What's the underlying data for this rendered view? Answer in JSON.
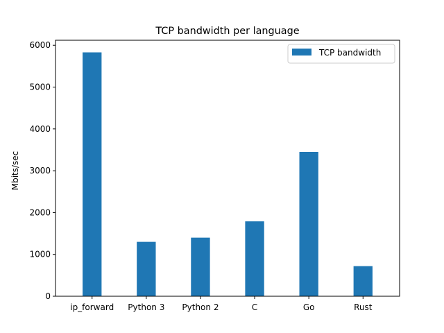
{
  "chart_data": {
    "type": "bar",
    "title": "TCP bandwidth per language",
    "xlabel": "",
    "ylabel": "Mbits/sec",
    "categories": [
      "ip_forward",
      "Python 3",
      "Python 2",
      "C",
      "Go",
      "Rust"
    ],
    "series": [
      {
        "name": "TCP bandwidth",
        "values": [
          5830,
          1300,
          1400,
          1790,
          3450,
          720
        ]
      }
    ],
    "ylim": [
      0,
      6120
    ],
    "yticks": [
      0,
      1000,
      2000,
      3000,
      4000,
      5000,
      6000
    ],
    "grid": false,
    "legend_position": "top-right",
    "bar_color": "#1f77b4"
  }
}
